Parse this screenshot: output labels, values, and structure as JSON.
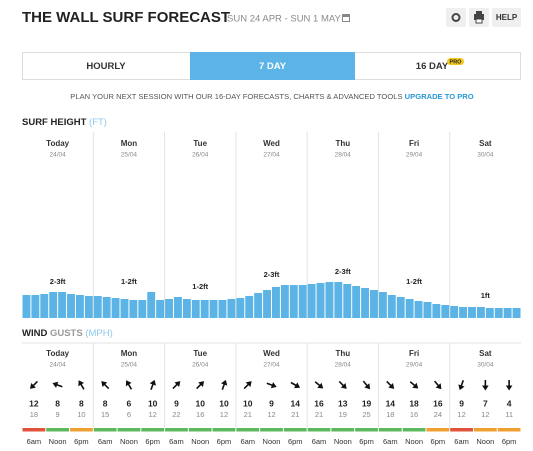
{
  "header": {
    "title": "THE WALL SURF FORECAST",
    "dates": "SUN 24 APR - SUN 1 MAY",
    "help": "HELP"
  },
  "tabs": {
    "items": [
      "HOURLY",
      "7 DAY",
      "16 DAY"
    ],
    "active": 1,
    "badge": "PRO"
  },
  "promo": {
    "text": "PLAN YOUR NEXT SESSION WITH OUR 16-DAY FORECASTS, CHARTS & ADVANCED TOOLS",
    "link": "UPGRADE TO PRO"
  },
  "surf": {
    "title": "SURF HEIGHT",
    "unit": "(FT)",
    "color": "#5bb4e5",
    "days": [
      {
        "name": "Today",
        "date": "24/04",
        "label": "2-3ft"
      },
      {
        "name": "Mon",
        "date": "25/04",
        "label": "1-2ft"
      },
      {
        "name": "Tue",
        "date": "26/04",
        "label": "1-2ft"
      },
      {
        "name": "Wed",
        "date": "27/04",
        "label": "2-3ft"
      },
      {
        "name": "Thu",
        "date": "28/04",
        "label": "2-3ft"
      },
      {
        "name": "Fri",
        "date": "29/04",
        "label": "1-2ft"
      },
      {
        "name": "Sat",
        "date": "30/04",
        "label": "1ft"
      }
    ],
    "values": [
      2.3,
      2.3,
      2.4,
      2.6,
      2.6,
      2.4,
      2.3,
      2.2,
      2.2,
      2.1,
      2.0,
      1.9,
      1.8,
      1.8,
      2.6,
      1.8,
      1.9,
      2.1,
      1.9,
      1.8,
      1.8,
      1.8,
      1.8,
      1.9,
      2.0,
      2.2,
      2.5,
      2.8,
      3.1,
      3.3,
      3.3,
      3.3,
      3.4,
      3.5,
      3.6,
      3.6,
      3.4,
      3.2,
      3.0,
      2.8,
      2.6,
      2.3,
      2.1,
      1.9,
      1.7,
      1.6,
      1.4,
      1.3,
      1.2,
      1.1,
      1.1,
      1.1,
      1.0,
      1.0,
      1.0,
      1.0
    ]
  },
  "wind": {
    "title": "WIND",
    "gusts": "GUSTS",
    "unit": "(MPH)",
    "times": [
      "6am",
      "Noon",
      "6pm"
    ],
    "slots": [
      {
        "speed": 12,
        "gust": 18,
        "dir": 225,
        "color": "#e0533a"
      },
      {
        "speed": 8,
        "gust": 9,
        "dir": 290,
        "color": "#5cb85c"
      },
      {
        "speed": 8,
        "gust": 10,
        "dir": 330,
        "color": "#f0a030"
      },
      {
        "speed": 8,
        "gust": 15,
        "dir": 315,
        "color": "#5cb85c"
      },
      {
        "speed": 6,
        "gust": 6,
        "dir": 330,
        "color": "#5cb85c"
      },
      {
        "speed": 10,
        "gust": 12,
        "dir": 20,
        "color": "#5cb85c"
      },
      {
        "speed": 9,
        "gust": 22,
        "dir": 45,
        "color": "#5cb85c"
      },
      {
        "speed": 10,
        "gust": 16,
        "dir": 45,
        "color": "#5cb85c"
      },
      {
        "speed": 10,
        "gust": 12,
        "dir": 20,
        "color": "#5cb85c"
      },
      {
        "speed": 10,
        "gust": 21,
        "dir": 45,
        "color": "#5cb85c"
      },
      {
        "speed": 9,
        "gust": 12,
        "dir": 110,
        "color": "#5cb85c"
      },
      {
        "speed": 14,
        "gust": 21,
        "dir": 120,
        "color": "#5cb85c"
      },
      {
        "speed": 16,
        "gust": 21,
        "dir": 130,
        "color": "#5cb85c"
      },
      {
        "speed": 13,
        "gust": 19,
        "dir": 135,
        "color": "#5cb85c"
      },
      {
        "speed": 19,
        "gust": 25,
        "dir": 140,
        "color": "#5cb85c"
      },
      {
        "speed": 14,
        "gust": 18,
        "dir": 135,
        "color": "#5cb85c"
      },
      {
        "speed": 18,
        "gust": 16,
        "dir": 130,
        "color": "#5cb85c"
      },
      {
        "speed": 16,
        "gust": 24,
        "dir": 140,
        "color": "#f0a030"
      },
      {
        "speed": 9,
        "gust": 12,
        "dir": 200,
        "color": "#e0533a"
      },
      {
        "speed": 7,
        "gust": 12,
        "dir": 180,
        "color": "#f0a030"
      },
      {
        "speed": 4,
        "gust": 11,
        "dir": 180,
        "color": "#f0a030"
      }
    ]
  }
}
